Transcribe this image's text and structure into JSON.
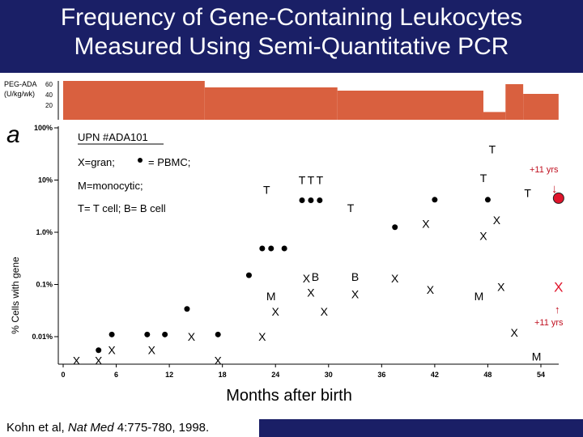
{
  "slide": {
    "title_line1": "Frequency of Gene-Containing Leukocytes",
    "title_line2": "Measured Using Semi-Quantitative PCR",
    "citation_prefix": "Kohn et al, ",
    "citation_journal": "Nat Med",
    "citation_rest": " 4:775-780, 1998."
  },
  "chart_data": {
    "type": "scatter",
    "panel_letter": "a",
    "xlabel": "Months after birth",
    "ylabel": "% Cells with gene",
    "x_ticks": [
      "0",
      "6",
      "12",
      "18",
      "24",
      "30",
      "36",
      "42",
      "48",
      "54"
    ],
    "y_ticks": [
      "100%",
      "10%",
      "1.0%",
      "0.1%",
      "0.01%"
    ],
    "xlim": [
      0,
      54
    ],
    "y_scale": "log",
    "legend": {
      "l1": "UPN #ADA101",
      "l2a": "X=gran;",
      "l2b": "= PBMC;",
      "l3": "M=monocytic;",
      "l4": "T= T cell; B= B cell"
    },
    "peg_ada": {
      "label_line1": "PEG-ADA",
      "label_line2": "(U/kg/wk)",
      "ticks": [
        "60",
        "40",
        "20"
      ],
      "dose_steps": [
        {
          "from": 0,
          "to": 16,
          "value": 60
        },
        {
          "from": 16,
          "to": 31,
          "value": 50
        },
        {
          "from": 31,
          "to": 47.5,
          "value": 45
        },
        {
          "from": 47.5,
          "to": 50,
          "value": 12
        },
        {
          "from": 50,
          "to": 52,
          "value": 55
        },
        {
          "from": 52,
          "to": 56,
          "value": 40
        }
      ]
    },
    "annotations": {
      "top": "+11 yrs",
      "bottom": "+11 yrs",
      "down_arrow": "↓",
      "up_arrow": "↑"
    },
    "markers": [
      {
        "glyph": "X",
        "x": 1.5,
        "y": 0.0035
      },
      {
        "glyph": "X",
        "x": 4,
        "y": 0.0035
      },
      {
        "glyph": "X",
        "x": 5.5,
        "y": 0.0055
      },
      {
        "glyph": "X",
        "x": 10,
        "y": 0.0055
      },
      {
        "glyph": "X",
        "x": 14.5,
        "y": 0.01
      },
      {
        "glyph": "X",
        "x": 17.5,
        "y": 0.0035
      },
      {
        "glyph": "X",
        "x": 22.5,
        "y": 0.01
      },
      {
        "glyph": "M",
        "x": 23.5,
        "y": 0.06
      },
      {
        "glyph": "X",
        "x": 24,
        "y": 0.03
      },
      {
        "glyph": "X",
        "x": 27.5,
        "y": 0.13
      },
      {
        "glyph": "B",
        "x": 28.5,
        "y": 0.14
      },
      {
        "glyph": "X",
        "x": 28,
        "y": 0.07
      },
      {
        "glyph": "X",
        "x": 29.5,
        "y": 0.03
      },
      {
        "glyph": "B",
        "x": 33,
        "y": 0.14
      },
      {
        "glyph": "X",
        "x": 33,
        "y": 0.065
      },
      {
        "glyph": "X",
        "x": 37.5,
        "y": 0.13
      },
      {
        "glyph": "X",
        "x": 41.5,
        "y": 0.08
      },
      {
        "glyph": "M",
        "x": 47,
        "y": 0.06
      },
      {
        "glyph": "X",
        "x": 49.5,
        "y": 0.09
      },
      {
        "glyph": "X",
        "x": 51,
        "y": 0.012
      },
      {
        "glyph": "M",
        "x": 53.5,
        "y": 0.0042
      },
      {
        "glyph": "X",
        "x": 41,
        "y": 1.45
      },
      {
        "glyph": "X",
        "x": 47.5,
        "y": 0.85
      },
      {
        "glyph": "X",
        "x": 49,
        "y": 1.7
      },
      {
        "glyph": "T",
        "x": 23,
        "y": 6.5
      },
      {
        "glyph": "T",
        "x": 27,
        "y": 10
      },
      {
        "glyph": "T",
        "x": 28,
        "y": 10
      },
      {
        "glyph": "T",
        "x": 29,
        "y": 10
      },
      {
        "glyph": "T",
        "x": 32.5,
        "y": 2.9
      },
      {
        "glyph": "T",
        "x": 47.5,
        "y": 11
      },
      {
        "glyph": "T",
        "x": 48.5,
        "y": 39
      },
      {
        "glyph": "T",
        "x": 52.5,
        "y": 5.6
      }
    ],
    "pbmc_dots": [
      {
        "x": 4,
        "y": 0.0055
      },
      {
        "x": 5.5,
        "y": 0.011
      },
      {
        "x": 9.5,
        "y": 0.011
      },
      {
        "x": 11.5,
        "y": 0.011
      },
      {
        "x": 14,
        "y": 0.034
      },
      {
        "x": 17.5,
        "y": 0.011
      },
      {
        "x": 21,
        "y": 0.15
      },
      {
        "x": 22.5,
        "y": 0.49
      },
      {
        "x": 23.5,
        "y": 0.49
      },
      {
        "x": 25,
        "y": 0.49
      },
      {
        "x": 27,
        "y": 4.1
      },
      {
        "x": 28,
        "y": 4.1
      },
      {
        "x": 29,
        "y": 4.1
      },
      {
        "x": 37.5,
        "y": 1.25
      },
      {
        "x": 42,
        "y": 4.2
      },
      {
        "x": 48,
        "y": 4.2
      }
    ],
    "highlight_dot": {
      "x": 56,
      "y": 4.5,
      "color": "#e0142b"
    },
    "highlight_x": {
      "glyph": "X",
      "x": 56,
      "y": 0.09,
      "color": "#e0142b"
    }
  }
}
